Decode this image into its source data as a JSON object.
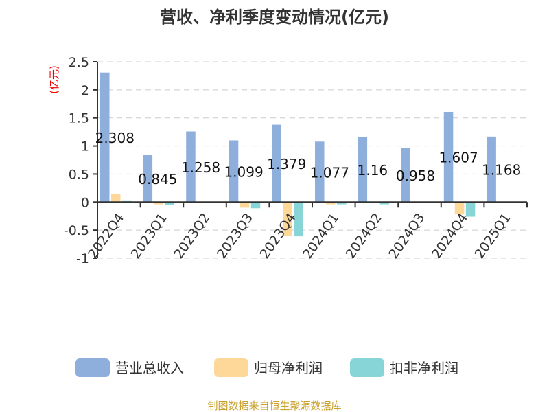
{
  "chart_data": {
    "type": "bar",
    "title": "营收、净利季度变动情况(亿元)",
    "ylabel": "(亿元)",
    "ylim": [
      -1,
      2.5
    ],
    "yticks": [
      "-1",
      "-0.5",
      "0",
      "0.5",
      "1",
      "1.5",
      "2",
      "2.5"
    ],
    "grid": true,
    "legend_position": "bottom",
    "categories": [
      "2022Q4",
      "2023Q1",
      "2023Q2",
      "2023Q3",
      "2023Q4",
      "2024Q1",
      "2024Q2",
      "2024Q3",
      "2024Q4",
      "2025Q1"
    ],
    "series": [
      {
        "name": "营业总收入",
        "color": "#8eaedc",
        "values": [
          2.308,
          0.845,
          1.258,
          1.099,
          1.379,
          1.077,
          1.16,
          0.958,
          1.607,
          1.168
        ],
        "labels": [
          "2.308",
          "0.845",
          "1.258",
          "1.099",
          "1.379",
          "1.077",
          "1.16",
          "0.958",
          "1.607",
          "1.168"
        ]
      },
      {
        "name": "归母净利润",
        "color": "#fdd898",
        "values": [
          0.15,
          -0.04,
          -0.02,
          -0.1,
          -0.6,
          -0.04,
          -0.02,
          -0.01,
          -0.22,
          0.005
        ]
      },
      {
        "name": "扣非净利润",
        "color": "#88d5d8",
        "values": [
          0.03,
          -0.05,
          -0.02,
          -0.11,
          -0.61,
          -0.04,
          -0.04,
          -0.02,
          -0.26,
          0.0
        ]
      }
    ]
  },
  "source": "制图数据来自恒生聚源数据库"
}
